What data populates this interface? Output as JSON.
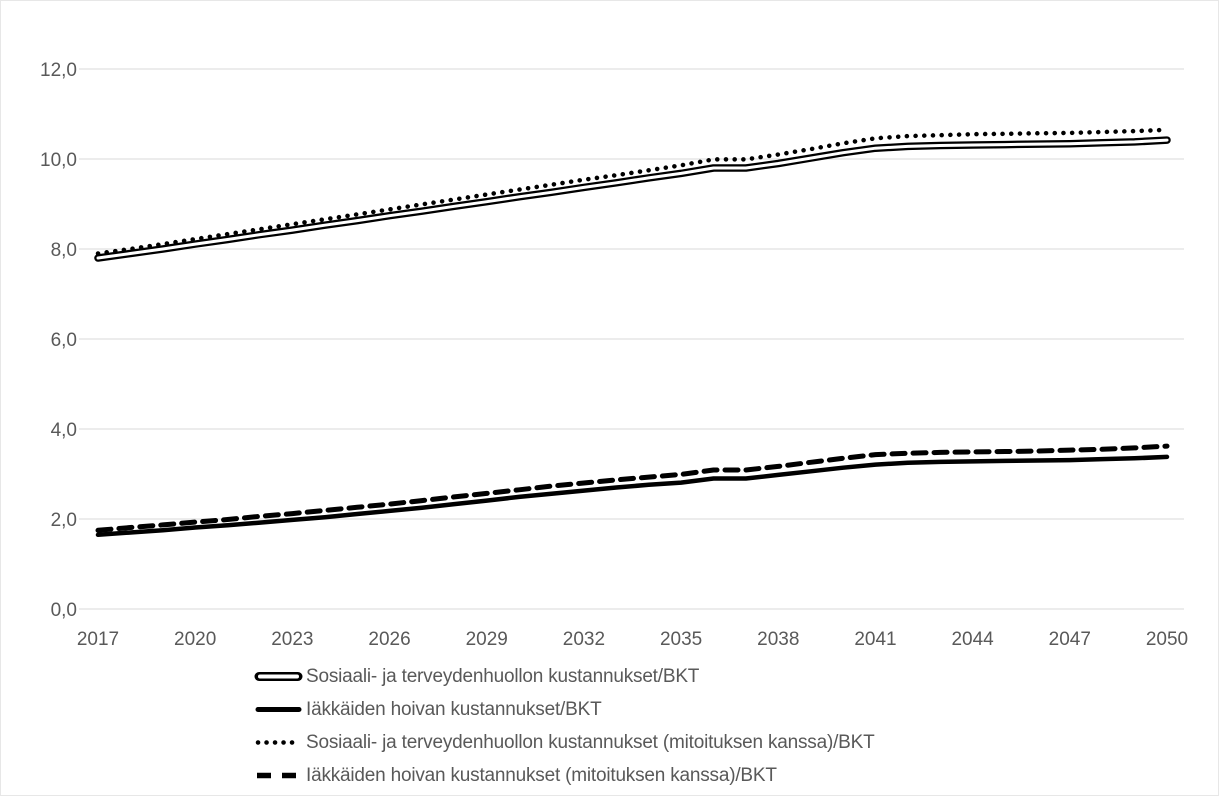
{
  "chart_data": {
    "type": "line",
    "title": "",
    "xlabel": "",
    "ylabel": "",
    "xlim": [
      2017,
      2050
    ],
    "ylim": [
      0,
      12.8
    ],
    "grid": "horizontal",
    "legend_position": "bottom-left",
    "text_color": "#595959",
    "grid_color": "#d9d9d9",
    "line_color": "#000000",
    "y_tick_values": [
      0,
      2,
      4,
      6,
      8,
      10,
      12
    ],
    "y_tick_labels": [
      "0,0",
      "2,0",
      "4,0",
      "6,0",
      "8,0",
      "10,0",
      "12,0"
    ],
    "x_tick_labels": [
      "2017",
      "2020",
      "2023",
      "2026",
      "2029",
      "2032",
      "2035",
      "2038",
      "2041",
      "2044",
      "2047",
      "2050"
    ],
    "x_years": [
      2017,
      2018,
      2019,
      2020,
      2021,
      2022,
      2023,
      2024,
      2025,
      2026,
      2027,
      2028,
      2029,
      2030,
      2031,
      2032,
      2033,
      2034,
      2035,
      2036,
      2037,
      2038,
      2039,
      2040,
      2041,
      2042,
      2043,
      2044,
      2045,
      2046,
      2047,
      2048,
      2049,
      2050
    ],
    "series": [
      {
        "name": "Sosiaali- ja terveydenhuollon kustannukset/BKT",
        "style": "double",
        "values": [
          7.8,
          7.9,
          8.0,
          8.11,
          8.21,
          8.32,
          8.42,
          8.53,
          8.63,
          8.74,
          8.84,
          8.95,
          9.05,
          9.16,
          9.26,
          9.37,
          9.47,
          9.58,
          9.68,
          9.8,
          9.8,
          9.9,
          10.02,
          10.14,
          10.24,
          10.28,
          10.3,
          10.31,
          10.32,
          10.33,
          10.34,
          10.36,
          10.38,
          10.42
        ]
      },
      {
        "name": "Iäkkäiden hoivan kustannukset/BKT",
        "style": "solid",
        "values": [
          1.65,
          1.7,
          1.75,
          1.81,
          1.86,
          1.92,
          1.98,
          2.04,
          2.11,
          2.18,
          2.25,
          2.33,
          2.41,
          2.49,
          2.56,
          2.63,
          2.7,
          2.76,
          2.81,
          2.9,
          2.9,
          2.98,
          3.06,
          3.14,
          3.21,
          3.25,
          3.27,
          3.28,
          3.29,
          3.3,
          3.31,
          3.33,
          3.35,
          3.38
        ]
      },
      {
        "name": "Sosiaali- ja terveydenhuollon kustannukset (mitoituksen kanssa)/BKT",
        "style": "dotted",
        "values": [
          7.9,
          8.0,
          8.11,
          8.22,
          8.33,
          8.44,
          8.55,
          8.66,
          8.77,
          8.88,
          8.99,
          9.1,
          9.21,
          9.32,
          9.43,
          9.54,
          9.64,
          9.75,
          9.86,
          9.99,
          9.99,
          10.1,
          10.22,
          10.35,
          10.46,
          10.51,
          10.53,
          10.55,
          10.56,
          10.57,
          10.58,
          10.6,
          10.62,
          10.65
        ]
      },
      {
        "name": "Iäkkäiden hoivan kustannukset (mitoituksen kanssa)/BKT",
        "style": "dashed",
        "values": [
          1.75,
          1.81,
          1.87,
          1.93,
          1.99,
          2.06,
          2.12,
          2.19,
          2.26,
          2.33,
          2.41,
          2.49,
          2.57,
          2.65,
          2.73,
          2.8,
          2.87,
          2.93,
          2.99,
          3.09,
          3.09,
          3.17,
          3.26,
          3.35,
          3.43,
          3.46,
          3.48,
          3.49,
          3.5,
          3.51,
          3.53,
          3.55,
          3.58,
          3.62
        ]
      }
    ]
  }
}
